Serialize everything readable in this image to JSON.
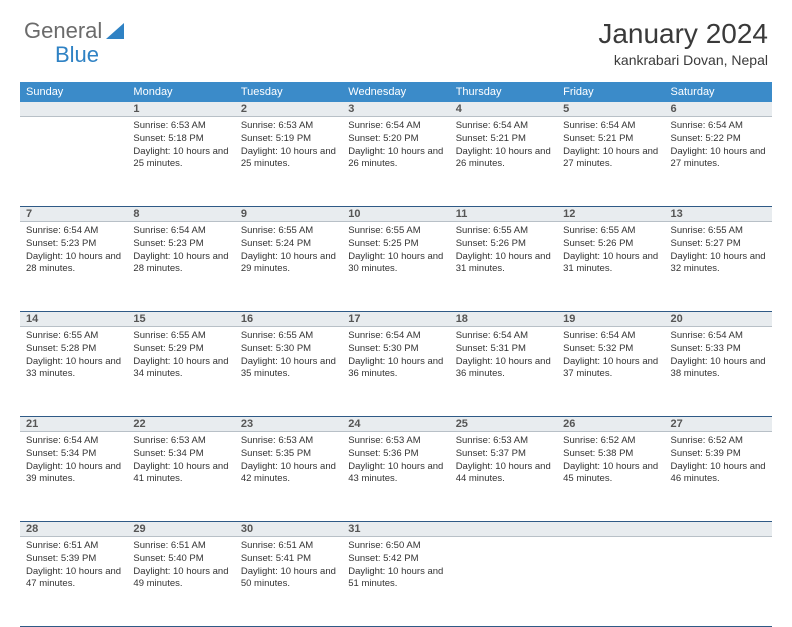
{
  "logo": {
    "part1": "General",
    "part2": "Blue"
  },
  "title": "January 2024",
  "location": "kankrabari Dovan, Nepal",
  "colors": {
    "header_bg": "#3b8bc9",
    "header_text": "#ffffff",
    "daynum_bg": "#e8ecef",
    "sep": "#2f5a86",
    "logo_gray": "#6b6b6b",
    "logo_blue": "#2f82c4"
  },
  "weekdays": [
    "Sunday",
    "Monday",
    "Tuesday",
    "Wednesday",
    "Thursday",
    "Friday",
    "Saturday"
  ],
  "weeks": [
    {
      "nums": [
        "",
        "1",
        "2",
        "3",
        "4",
        "5",
        "6"
      ],
      "cells": [
        "",
        "Sunrise: 6:53 AM\nSunset: 5:18 PM\nDaylight: 10 hours and 25 minutes.",
        "Sunrise: 6:53 AM\nSunset: 5:19 PM\nDaylight: 10 hours and 25 minutes.",
        "Sunrise: 6:54 AM\nSunset: 5:20 PM\nDaylight: 10 hours and 26 minutes.",
        "Sunrise: 6:54 AM\nSunset: 5:21 PM\nDaylight: 10 hours and 26 minutes.",
        "Sunrise: 6:54 AM\nSunset: 5:21 PM\nDaylight: 10 hours and 27 minutes.",
        "Sunrise: 6:54 AM\nSunset: 5:22 PM\nDaylight: 10 hours and 27 minutes."
      ]
    },
    {
      "nums": [
        "7",
        "8",
        "9",
        "10",
        "11",
        "12",
        "13"
      ],
      "cells": [
        "Sunrise: 6:54 AM\nSunset: 5:23 PM\nDaylight: 10 hours and 28 minutes.",
        "Sunrise: 6:54 AM\nSunset: 5:23 PM\nDaylight: 10 hours and 28 minutes.",
        "Sunrise: 6:55 AM\nSunset: 5:24 PM\nDaylight: 10 hours and 29 minutes.",
        "Sunrise: 6:55 AM\nSunset: 5:25 PM\nDaylight: 10 hours and 30 minutes.",
        "Sunrise: 6:55 AM\nSunset: 5:26 PM\nDaylight: 10 hours and 31 minutes.",
        "Sunrise: 6:55 AM\nSunset: 5:26 PM\nDaylight: 10 hours and 31 minutes.",
        "Sunrise: 6:55 AM\nSunset: 5:27 PM\nDaylight: 10 hours and 32 minutes."
      ]
    },
    {
      "nums": [
        "14",
        "15",
        "16",
        "17",
        "18",
        "19",
        "20"
      ],
      "cells": [
        "Sunrise: 6:55 AM\nSunset: 5:28 PM\nDaylight: 10 hours and 33 minutes.",
        "Sunrise: 6:55 AM\nSunset: 5:29 PM\nDaylight: 10 hours and 34 minutes.",
        "Sunrise: 6:55 AM\nSunset: 5:30 PM\nDaylight: 10 hours and 35 minutes.",
        "Sunrise: 6:54 AM\nSunset: 5:30 PM\nDaylight: 10 hours and 36 minutes.",
        "Sunrise: 6:54 AM\nSunset: 5:31 PM\nDaylight: 10 hours and 36 minutes.",
        "Sunrise: 6:54 AM\nSunset: 5:32 PM\nDaylight: 10 hours and 37 minutes.",
        "Sunrise: 6:54 AM\nSunset: 5:33 PM\nDaylight: 10 hours and 38 minutes."
      ]
    },
    {
      "nums": [
        "21",
        "22",
        "23",
        "24",
        "25",
        "26",
        "27"
      ],
      "cells": [
        "Sunrise: 6:54 AM\nSunset: 5:34 PM\nDaylight: 10 hours and 39 minutes.",
        "Sunrise: 6:53 AM\nSunset: 5:34 PM\nDaylight: 10 hours and 41 minutes.",
        "Sunrise: 6:53 AM\nSunset: 5:35 PM\nDaylight: 10 hours and 42 minutes.",
        "Sunrise: 6:53 AM\nSunset: 5:36 PM\nDaylight: 10 hours and 43 minutes.",
        "Sunrise: 6:53 AM\nSunset: 5:37 PM\nDaylight: 10 hours and 44 minutes.",
        "Sunrise: 6:52 AM\nSunset: 5:38 PM\nDaylight: 10 hours and 45 minutes.",
        "Sunrise: 6:52 AM\nSunset: 5:39 PM\nDaylight: 10 hours and 46 minutes."
      ]
    },
    {
      "nums": [
        "28",
        "29",
        "30",
        "31",
        "",
        "",
        ""
      ],
      "cells": [
        "Sunrise: 6:51 AM\nSunset: 5:39 PM\nDaylight: 10 hours and 47 minutes.",
        "Sunrise: 6:51 AM\nSunset: 5:40 PM\nDaylight: 10 hours and 49 minutes.",
        "Sunrise: 6:51 AM\nSunset: 5:41 PM\nDaylight: 10 hours and 50 minutes.",
        "Sunrise: 6:50 AM\nSunset: 5:42 PM\nDaylight: 10 hours and 51 minutes.",
        "",
        "",
        ""
      ]
    }
  ]
}
